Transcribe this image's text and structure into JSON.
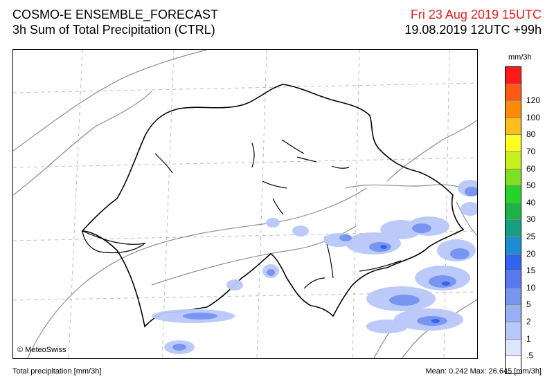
{
  "header": {
    "model": "COSMO-E ENSEMBLE_FORECAST",
    "product": "3h Sum of Total Precipitation (CTRL)",
    "valid_time": "Fri 23 Aug 2019 15UTC",
    "run_info": "19.08.2019 12UTC +99h"
  },
  "map": {
    "copyright": "© MeteoSwiss"
  },
  "legend": {
    "unit": "mm/3h",
    "levels": [
      {
        "label": "",
        "color": "#ff1a1a"
      },
      {
        "label": "120",
        "color": "#ff5a14"
      },
      {
        "label": "100",
        "color": "#ff8c00"
      },
      {
        "label": "80",
        "color": "#ffbe1e"
      },
      {
        "label": "70",
        "color": "#ffff1e"
      },
      {
        "label": "60",
        "color": "#c8f01e"
      },
      {
        "label": "50",
        "color": "#7ee01e"
      },
      {
        "label": "40",
        "color": "#28d228"
      },
      {
        "label": "30",
        "color": "#1ab446"
      },
      {
        "label": "25",
        "color": "#14a082"
      },
      {
        "label": "20",
        "color": "#1e8cd2"
      },
      {
        "label": "15",
        "color": "#3264f0"
      },
      {
        "label": "10",
        "color": "#5a78f0"
      },
      {
        "label": "5",
        "color": "#7896f0"
      },
      {
        "label": "2",
        "color": "#96aff5"
      },
      {
        "label": "1",
        "color": "#b9c8fa"
      },
      {
        "label": ".5",
        "color": "#dce6ff"
      },
      {
        "label": "",
        "color": "#ffffff"
      }
    ]
  },
  "footer": {
    "left": "Total precipitation [mm/3h]",
    "right": "Mean:   0.242 Max:  26.645 [mm/3h]"
  }
}
